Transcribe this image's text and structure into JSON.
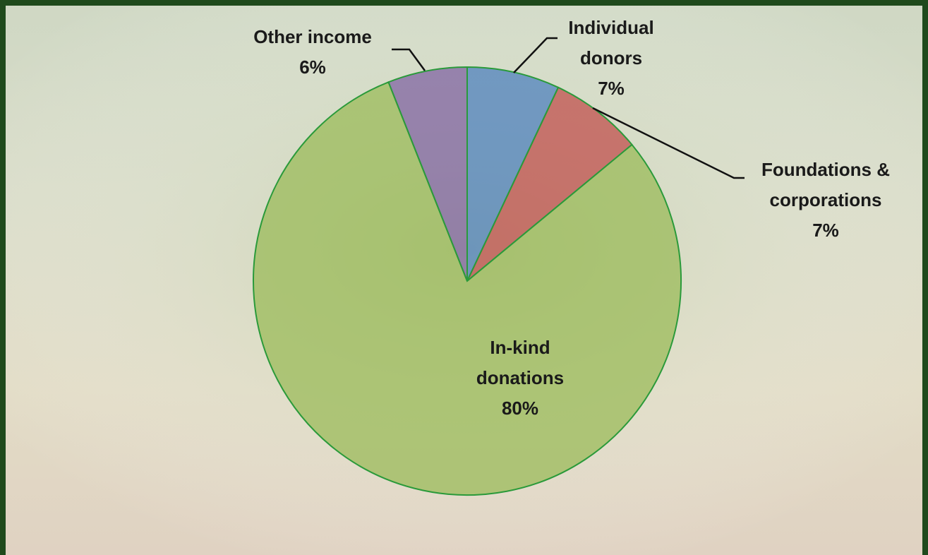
{
  "chart_data": {
    "type": "pie",
    "categories": [
      "Individual donors",
      "Foundations & corporations",
      "In-kind donations",
      "Other income"
    ],
    "values": [
      7,
      7,
      80,
      6
    ],
    "value_labels": [
      "7%",
      "7%",
      "80%",
      "6%"
    ],
    "colors": [
      "#4f81bd",
      "#c0504d",
      "#9bbb59",
      "#8064a2"
    ]
  }
}
